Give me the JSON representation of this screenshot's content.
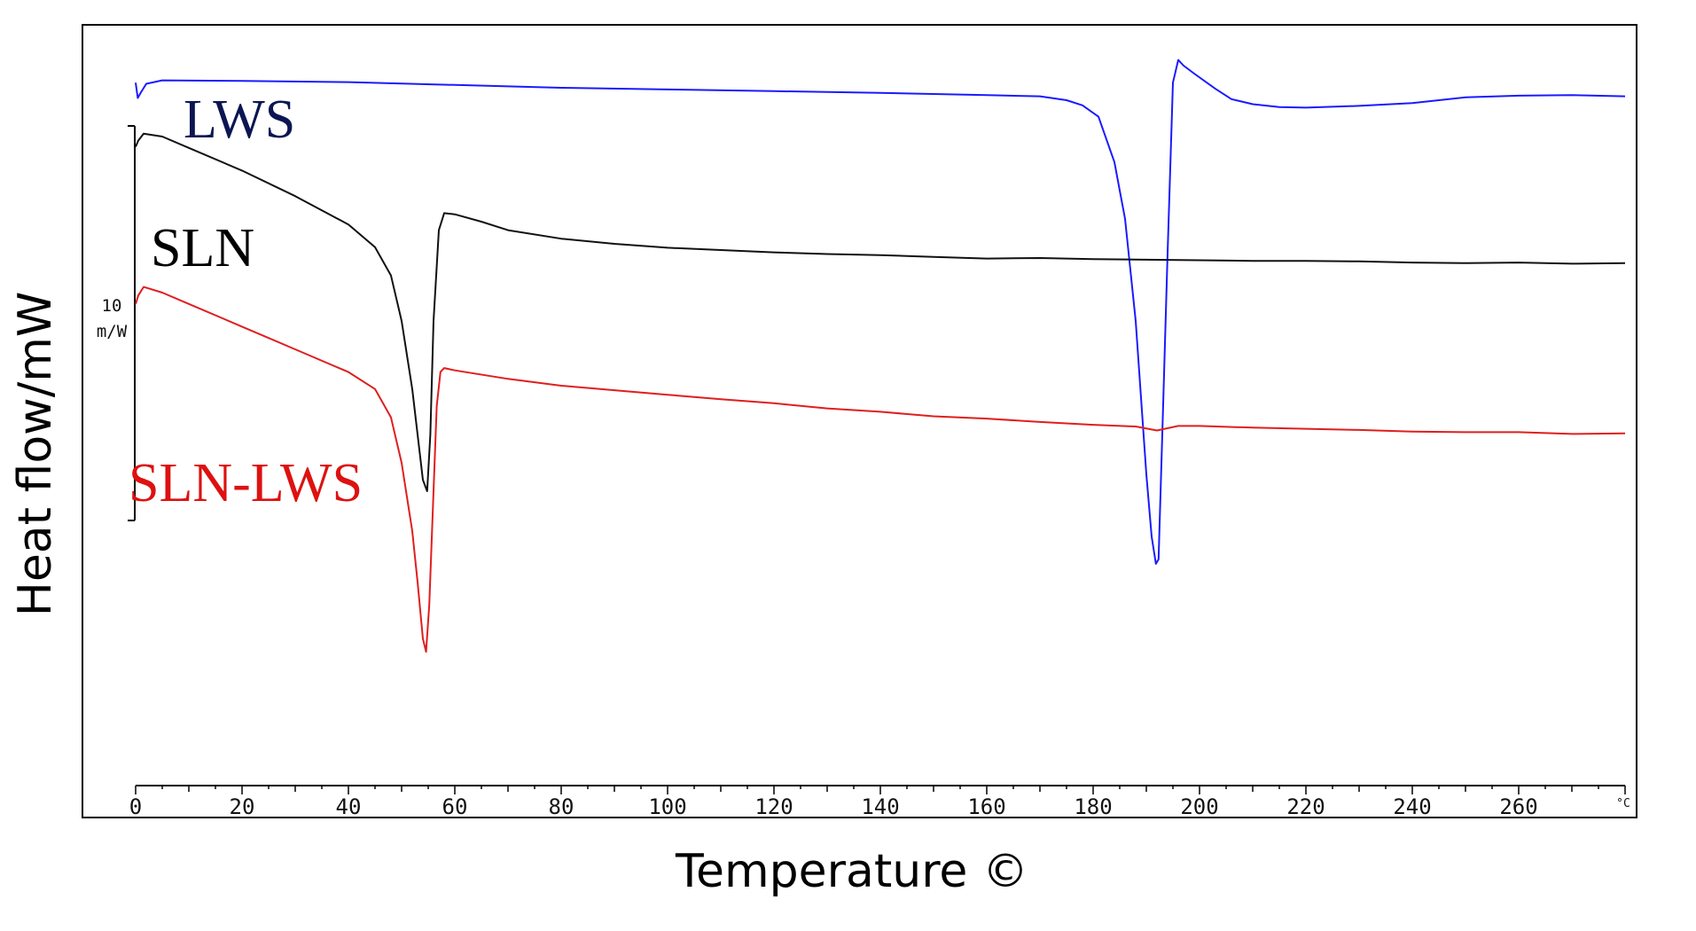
{
  "chart_data": {
    "type": "line",
    "xlabel": "Temperature ©",
    "ylabel": "Heat flow/mW",
    "x_unit": "°C",
    "xlim": [
      0,
      280
    ],
    "x_ticks": [
      0,
      20,
      40,
      60,
      80,
      100,
      120,
      140,
      160,
      180,
      200,
      220,
      240,
      260
    ],
    "scale_bar": {
      "value": "10",
      "unit": "m/W",
      "mW": 10
    },
    "grid": false,
    "legend": "inline labels",
    "series": [
      {
        "name": "LWS",
        "color": "#1a1aff",
        "label_color": "#0b1652",
        "points": [
          [
            0,
            2.0
          ],
          [
            0.4,
            -0.7
          ],
          [
            1,
            0.3
          ],
          [
            2,
            1.8
          ],
          [
            5,
            2.4
          ],
          [
            20,
            2.3
          ],
          [
            40,
            2.1
          ],
          [
            60,
            1.6
          ],
          [
            80,
            1.1
          ],
          [
            100,
            0.8
          ],
          [
            120,
            0.5
          ],
          [
            140,
            0.2
          ],
          [
            160,
            -0.2
          ],
          [
            170,
            -0.4
          ],
          [
            175,
            -1.1
          ],
          [
            178,
            -2.0
          ],
          [
            181,
            -4.0
          ],
          [
            184,
            -12
          ],
          [
            186,
            -22
          ],
          [
            188,
            -40
          ],
          [
            190,
            -67
          ],
          [
            191,
            -78
          ],
          [
            191.8,
            -82.8
          ],
          [
            192.3,
            -82
          ],
          [
            193,
            -60
          ],
          [
            194,
            -28
          ],
          [
            195,
            2
          ],
          [
            196,
            6.0
          ],
          [
            197,
            5.0
          ],
          [
            199,
            3.6
          ],
          [
            203,
            0.9
          ],
          [
            206,
            -0.9
          ],
          [
            210,
            -1.8
          ],
          [
            215,
            -2.3
          ],
          [
            220,
            -2.4
          ],
          [
            230,
            -2.1
          ],
          [
            240,
            -1.6
          ],
          [
            250,
            -0.6
          ],
          [
            260,
            -0.3
          ],
          [
            270,
            -0.2
          ],
          [
            280,
            -0.4
          ]
        ]
      },
      {
        "name": "SLN",
        "color": "#111111",
        "label_color": "#000000",
        "points": [
          [
            0,
            -9.3
          ],
          [
            0.5,
            -8.2
          ],
          [
            1.5,
            -7.0
          ],
          [
            5,
            -7.5
          ],
          [
            10,
            -9.5
          ],
          [
            20,
            -13.5
          ],
          [
            30,
            -18
          ],
          [
            40,
            -23
          ],
          [
            45,
            -27
          ],
          [
            48,
            -32
          ],
          [
            50,
            -40
          ],
          [
            52,
            -52
          ],
          [
            53,
            -60
          ],
          [
            54,
            -68
          ],
          [
            54.8,
            -70
          ],
          [
            55.4,
            -60
          ],
          [
            56,
            -40
          ],
          [
            57,
            -24
          ],
          [
            58,
            -21.0
          ],
          [
            60,
            -21.2
          ],
          [
            65,
            -22.5
          ],
          [
            70,
            -24
          ],
          [
            80,
            -25.5
          ],
          [
            90,
            -26.4
          ],
          [
            100,
            -27.1
          ],
          [
            110,
            -27.5
          ],
          [
            120,
            -27.9
          ],
          [
            130,
            -28.2
          ],
          [
            140,
            -28.4
          ],
          [
            150,
            -28.7
          ],
          [
            160,
            -29.0
          ],
          [
            170,
            -28.9
          ],
          [
            180,
            -29.1
          ],
          [
            190,
            -29.2
          ],
          [
            200,
            -29.3
          ],
          [
            210,
            -29.4
          ],
          [
            220,
            -29.4
          ],
          [
            230,
            -29.5
          ],
          [
            240,
            -29.7
          ],
          [
            250,
            -29.8
          ],
          [
            260,
            -29.7
          ],
          [
            270,
            -29.9
          ],
          [
            280,
            -29.8
          ]
        ]
      },
      {
        "name": "SLN-LWS",
        "color": "#e01e1e",
        "label_color": "#dd1111",
        "points": [
          [
            0,
            -37
          ],
          [
            0.5,
            -35.5
          ],
          [
            1.5,
            -34.0
          ],
          [
            5,
            -35
          ],
          [
            10,
            -37
          ],
          [
            20,
            -41
          ],
          [
            30,
            -45
          ],
          [
            40,
            -49
          ],
          [
            45,
            -52
          ],
          [
            48,
            -57
          ],
          [
            50,
            -65
          ],
          [
            52,
            -77
          ],
          [
            53,
            -86
          ],
          [
            54,
            -96
          ],
          [
            54.6,
            -98.3
          ],
          [
            55.2,
            -90
          ],
          [
            56,
            -70
          ],
          [
            56.6,
            -55
          ],
          [
            57.3,
            -49.0
          ],
          [
            58,
            -48.3
          ],
          [
            60,
            -48.7
          ],
          [
            70,
            -50.2
          ],
          [
            80,
            -51.4
          ],
          [
            90,
            -52.2
          ],
          [
            100,
            -53.0
          ],
          [
            110,
            -53.8
          ],
          [
            120,
            -54.5
          ],
          [
            130,
            -55.4
          ],
          [
            140,
            -56.0
          ],
          [
            150,
            -56.8
          ],
          [
            160,
            -57.2
          ],
          [
            170,
            -57.8
          ],
          [
            180,
            -58.3
          ],
          [
            188,
            -58.6
          ],
          [
            192,
            -59.3
          ],
          [
            196,
            -58.5
          ],
          [
            200,
            -58.5
          ],
          [
            210,
            -58.8
          ],
          [
            220,
            -59.0
          ],
          [
            230,
            -59.2
          ],
          [
            240,
            -59.5
          ],
          [
            250,
            -59.6
          ],
          [
            260,
            -59.6
          ],
          [
            270,
            -59.9
          ],
          [
            280,
            -59.8
          ]
        ]
      }
    ]
  }
}
